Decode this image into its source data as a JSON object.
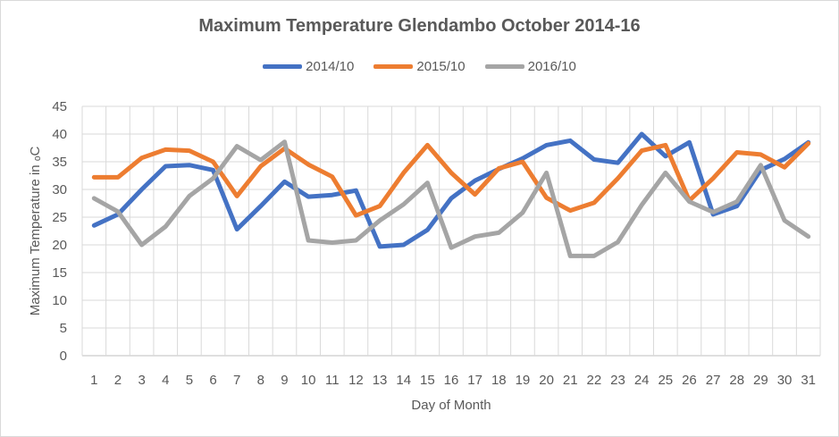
{
  "chart_data": {
    "type": "line",
    "title": "Maximum Temperature Glendambo October 2014-16",
    "xlabel": "Day of Month",
    "ylabel": "Maximum Temperature in ₒC",
    "ylim": [
      0,
      45
    ],
    "ytick_step": 5,
    "grid": true,
    "legend_position": "top",
    "x": [
      1,
      2,
      3,
      4,
      5,
      6,
      7,
      8,
      9,
      10,
      11,
      12,
      13,
      14,
      15,
      16,
      17,
      18,
      19,
      20,
      21,
      22,
      23,
      24,
      25,
      26,
      27,
      28,
      29,
      30,
      31
    ],
    "series": [
      {
        "name": "2014/10",
        "color": "#4472C4",
        "values": [
          23.5,
          25.5,
          30,
          34.2,
          34.4,
          33.5,
          22.8,
          27,
          31.4,
          28.7,
          29,
          29.8,
          19.7,
          20,
          22.7,
          28.4,
          31.6,
          33.7,
          35.6,
          38,
          38.8,
          35.4,
          34.8,
          40,
          36,
          38.5,
          25.5,
          27,
          33.5,
          35.5,
          38.5
        ]
      },
      {
        "name": "2015/10",
        "color": "#ED7D31",
        "values": [
          32.2,
          32.2,
          35.7,
          37.2,
          37,
          35,
          28.8,
          34.2,
          37.4,
          34.5,
          32.3,
          25.3,
          27,
          33,
          38,
          33,
          29.1,
          33.8,
          35,
          28.5,
          26.2,
          27.6,
          32,
          37,
          38,
          28,
          32,
          36.7,
          36.3,
          34,
          38.3
        ]
      },
      {
        "name": "2016/10",
        "color": "#A5A5A5",
        "values": [
          28.4,
          26,
          20,
          23.3,
          28.8,
          32,
          37.8,
          35.3,
          38.6,
          20.8,
          20.4,
          20.8,
          24.4,
          27.3,
          31.2,
          19.5,
          21.5,
          22.2,
          25.8,
          33,
          18,
          18,
          20.5,
          27.2,
          33,
          27.8,
          25.9,
          27.8,
          34.4,
          24.4,
          21.5
        ]
      }
    ]
  }
}
